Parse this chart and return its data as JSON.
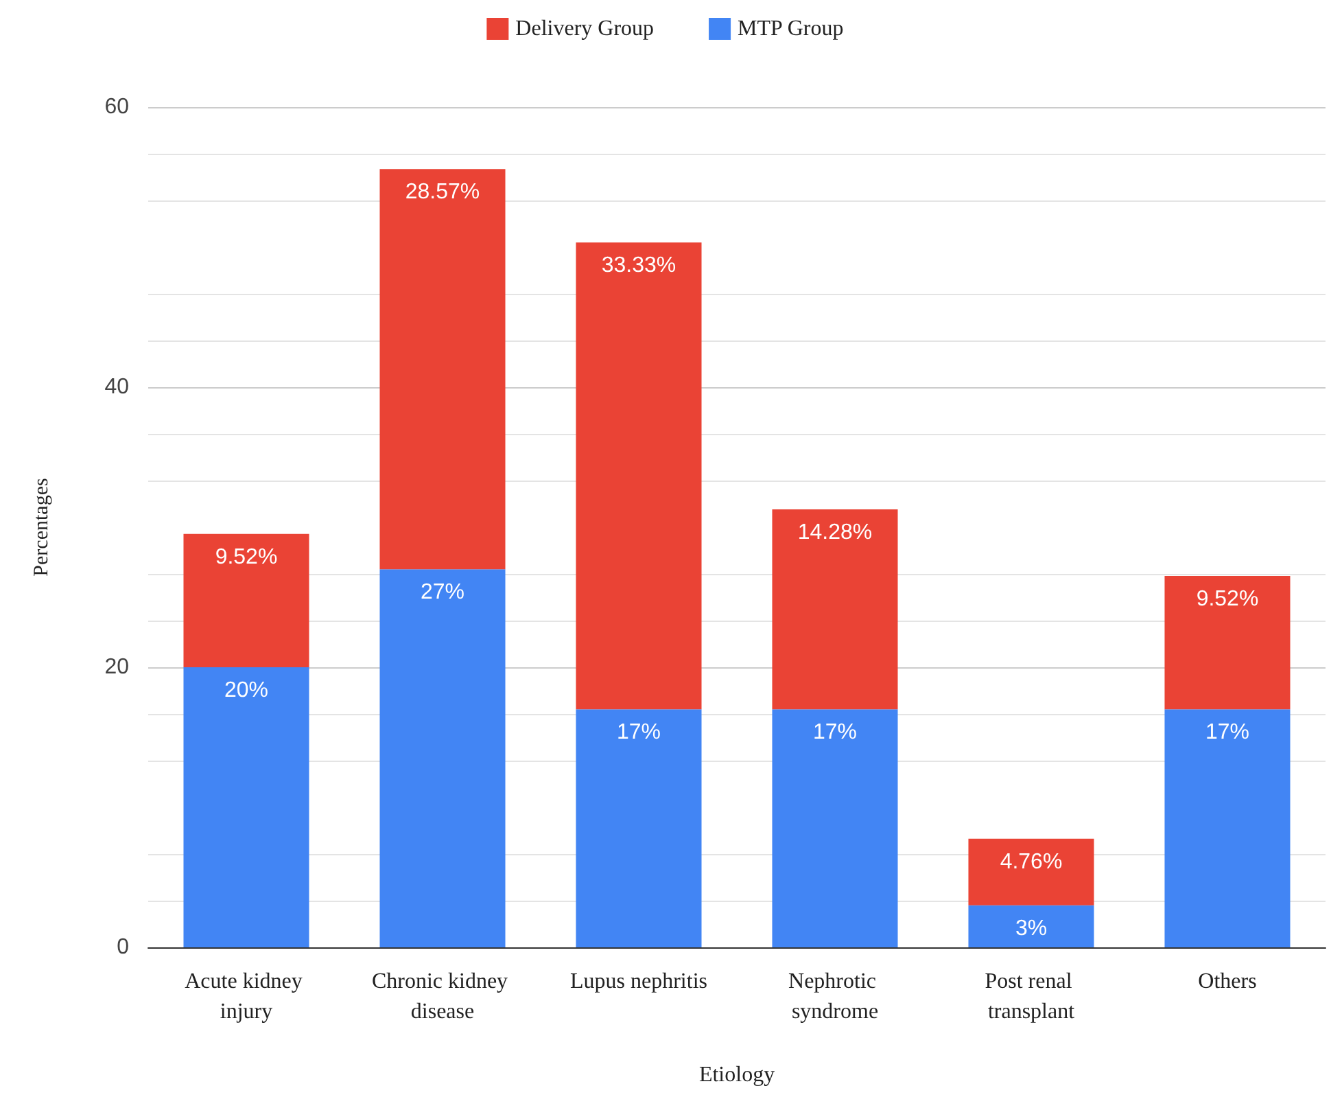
{
  "chart_data": {
    "type": "bar",
    "stacked": true,
    "xlabel": "Etiology",
    "ylabel": "Percentages",
    "categories": [
      "Acute kidney injury",
      "Chronic kidney disease",
      "Lupus nephritis",
      "Nephrotic syndrome",
      "Post renal transplant",
      "Others"
    ],
    "series": [
      {
        "name": "MTP Group",
        "color": "#4285f4",
        "values": [
          20,
          27,
          17,
          17,
          3,
          17
        ],
        "value_labels": [
          "20%",
          "27%",
          "17%",
          "17%",
          "3%",
          "17%"
        ]
      },
      {
        "name": "Delivery Group",
        "color": "#ea4335",
        "values": [
          9.52,
          28.57,
          33.33,
          14.28,
          4.76,
          9.52
        ],
        "value_labels": [
          "9.52%",
          "28.57%",
          "33.33%",
          "14.28%",
          "4.76%",
          "9.52%"
        ]
      }
    ],
    "ylim": [
      0,
      60
    ],
    "yticks": [
      0,
      20,
      40,
      60
    ],
    "grid": "y",
    "legend": "top"
  }
}
